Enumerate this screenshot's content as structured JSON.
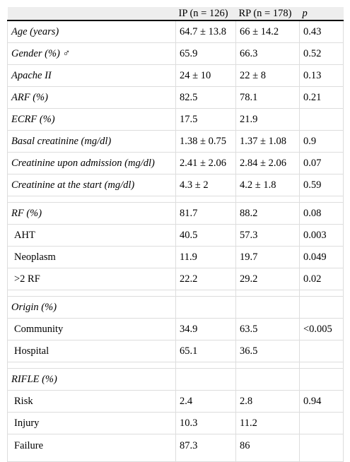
{
  "header": {
    "c0": "",
    "c1": "IP (n = 126)",
    "c2": "RP (n = 178)",
    "c3": "p"
  },
  "rows": [
    {
      "type": "row",
      "style": "label",
      "label": "Age (years)",
      "ip": "64.7 ± 13.8",
      "rp": "66 ± 14.2",
      "p": "0.43"
    },
    {
      "type": "row",
      "style": "label",
      "label": "Gender (%) ♂",
      "ip": "65.9",
      "rp": "66.3",
      "p": "0.52"
    },
    {
      "type": "row",
      "style": "label",
      "label": "Apache II",
      "ip": "24 ± 10",
      "rp": "22 ± 8",
      "p": "0.13"
    },
    {
      "type": "row",
      "style": "label",
      "label": "ARF (%)",
      "ip": "82.5",
      "rp": "78.1",
      "p": "0.21"
    },
    {
      "type": "row",
      "style": "label",
      "label": "ECRF (%)",
      "ip": "17.5",
      "rp": "21.9",
      "p": ""
    },
    {
      "type": "row",
      "style": "label",
      "label": "Basal creatinine (mg/dl)",
      "ip": "1.38 ± 0.75",
      "rp": "1.37 ± 1.08",
      "p": "0.9"
    },
    {
      "type": "row",
      "style": "label",
      "label": "Creatinine upon admission (mg/dl)",
      "ip": "2.41 ± 2.06",
      "rp": "2.84 ± 2.06",
      "p": "0.07"
    },
    {
      "type": "row",
      "style": "label",
      "label": "Creatinine at the start (mg/dl)",
      "ip": "4.3 ± 2",
      "rp": "4.2 ± 1.8",
      "p": "0.59"
    },
    {
      "type": "sep"
    },
    {
      "type": "row",
      "style": "label",
      "label": "RF (%)",
      "ip": "81.7",
      "rp": "88.2",
      "p": "0.08"
    },
    {
      "type": "row",
      "style": "sub",
      "label": "AHT",
      "ip": "40.5",
      "rp": "57.3",
      "p": "0.003"
    },
    {
      "type": "row",
      "style": "sub",
      "label": "Neoplasm",
      "ip": "11.9",
      "rp": "19.7",
      "p": "0.049"
    },
    {
      "type": "row",
      "style": "sub",
      "label": ">2 RF",
      "ip": "22.2",
      "rp": "29.2",
      "p": "0.02"
    },
    {
      "type": "sep"
    },
    {
      "type": "row",
      "style": "label",
      "label": "Origin (%)",
      "ip": "",
      "rp": "",
      "p": ""
    },
    {
      "type": "row",
      "style": "sub",
      "label": "Community",
      "ip": "34.9",
      "rp": "63.5",
      "p": "<0.005"
    },
    {
      "type": "row",
      "style": "sub",
      "label": "Hospital",
      "ip": "65.1",
      "rp": "36.5",
      "p": ""
    },
    {
      "type": "sep"
    },
    {
      "type": "row",
      "style": "label",
      "label": "RIFLE (%)",
      "ip": "",
      "rp": "",
      "p": ""
    },
    {
      "type": "row",
      "style": "sub",
      "label": "Risk",
      "ip": "2.4",
      "rp": "2.8",
      "p": "0.94"
    },
    {
      "type": "row",
      "style": "sub",
      "label": "Injury",
      "ip": "10.3",
      "rp": "11.2",
      "p": ""
    },
    {
      "type": "row",
      "style": "sub",
      "label": "Failure",
      "ip": "87.3",
      "rp": "86",
      "p": "",
      "cut": true
    }
  ]
}
